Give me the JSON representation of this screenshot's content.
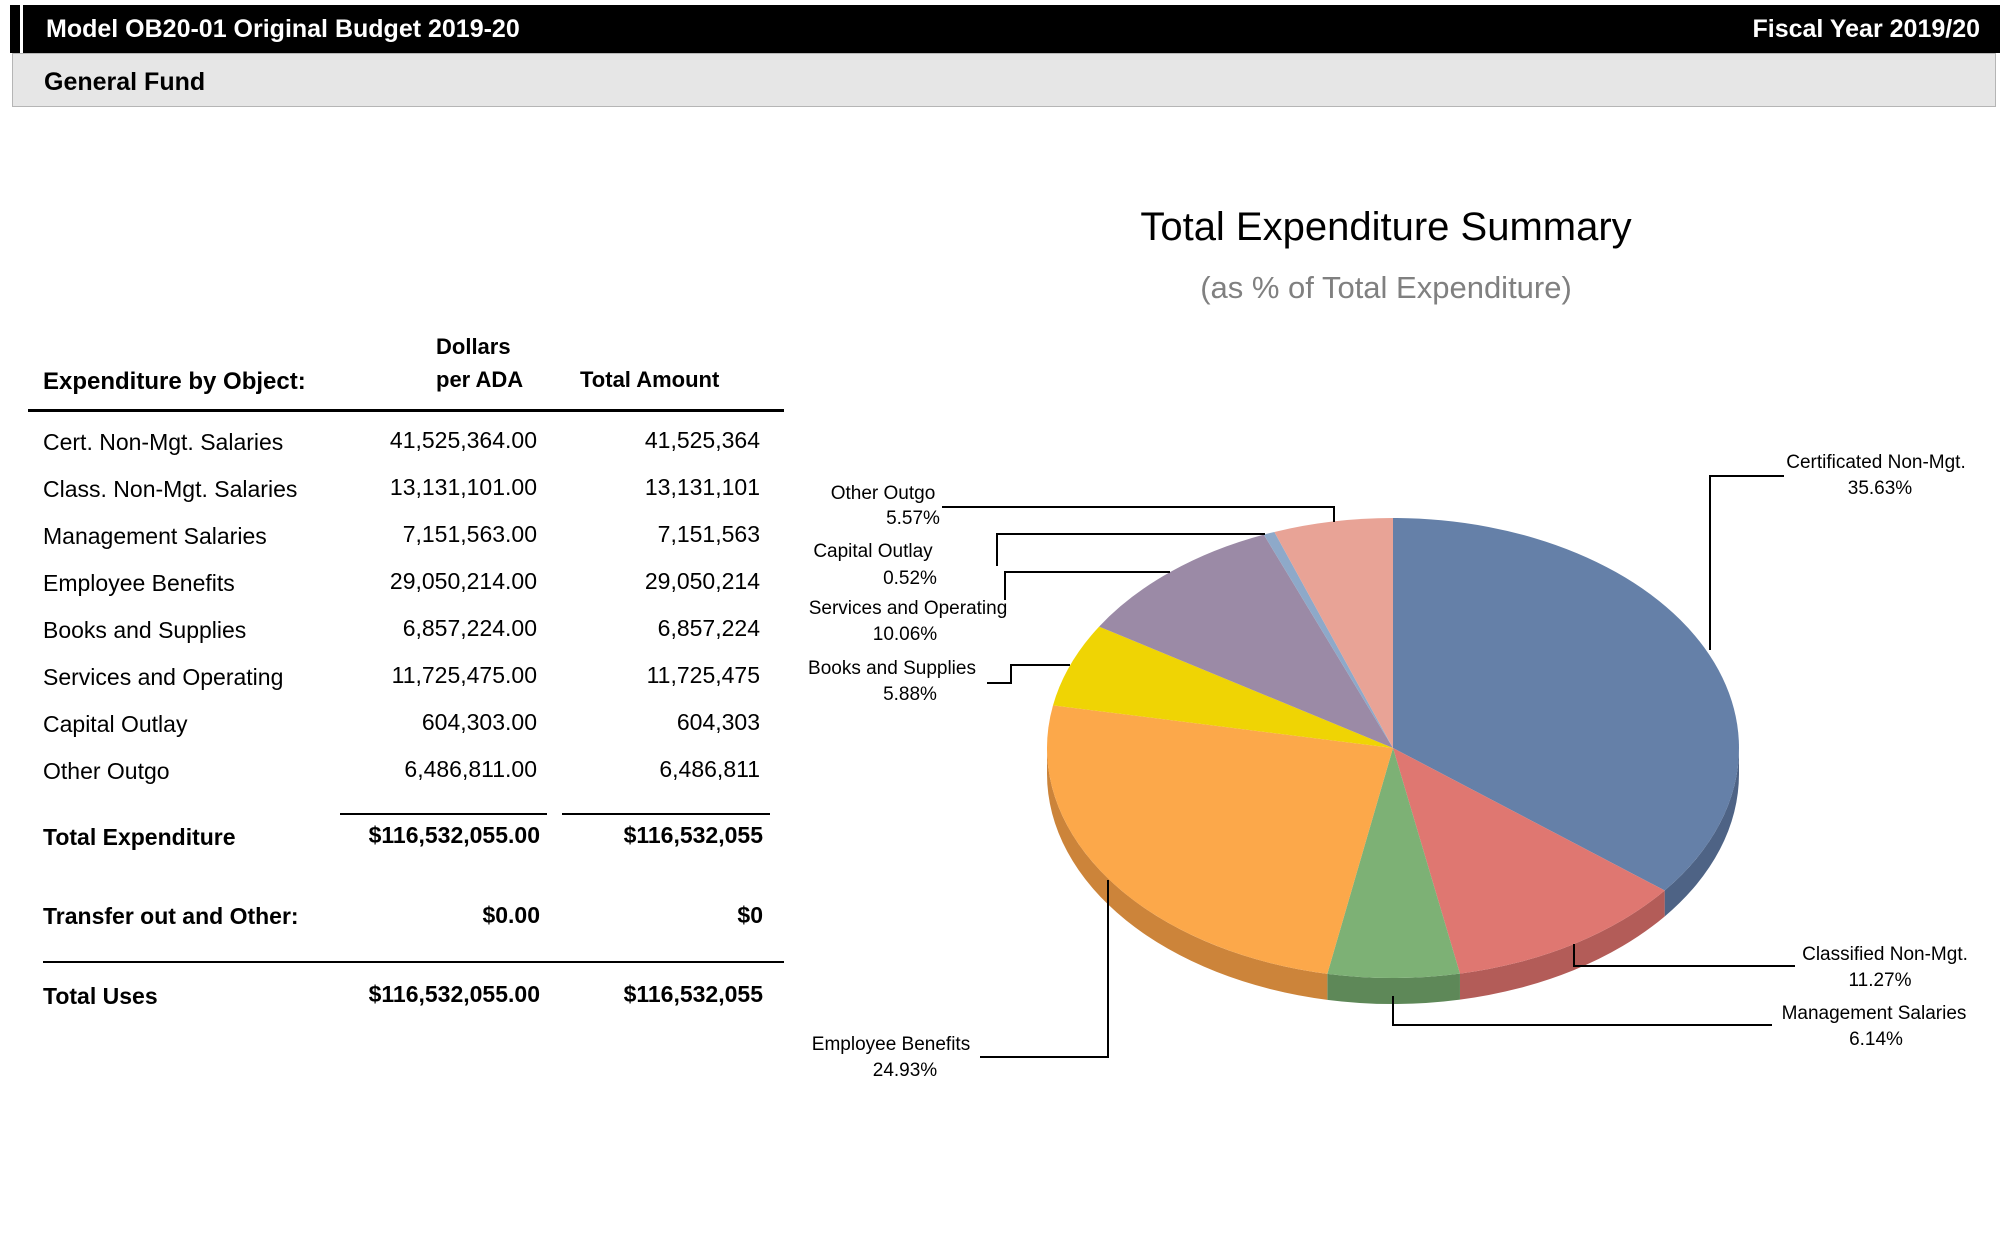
{
  "header": {
    "title": "Model OB20-01 Original Budget 2019-20",
    "fiscal_year": "Fiscal Year 2019/20",
    "fund": "General Fund"
  },
  "table": {
    "section_label": "Expenditure by Object:",
    "col_dollars_line1": "Dollars",
    "col_dollars_line2": "per ADA",
    "col_total": "Total Amount",
    "rows": [
      {
        "label": "Cert. Non-Mgt. Salaries",
        "per_ada": "41,525,364.00",
        "total": "41,525,364"
      },
      {
        "label": "Class. Non-Mgt. Salaries",
        "per_ada": "13,131,101.00",
        "total": "13,131,101"
      },
      {
        "label": "Management Salaries",
        "per_ada": "7,151,563.00",
        "total": "7,151,563"
      },
      {
        "label": "Employee Benefits",
        "per_ada": "29,050,214.00",
        "total": "29,050,214"
      },
      {
        "label": "Books and Supplies",
        "per_ada": "6,857,224.00",
        "total": "6,857,224"
      },
      {
        "label": "Services and Operating",
        "per_ada": "11,725,475.00",
        "total": "11,725,475"
      },
      {
        "label": "Capital Outlay",
        "per_ada": "604,303.00",
        "total": "604,303"
      },
      {
        "label": "Other Outgo",
        "per_ada": "6,486,811.00",
        "total": "6,486,811"
      }
    ],
    "total_expenditure": {
      "label": "Total Expenditure",
      "per_ada": "$116,532,055.00",
      "total": "$116,532,055"
    },
    "transfer_out": {
      "label": "Transfer out and Other:",
      "per_ada": "$0.00",
      "total": "$0"
    },
    "total_uses": {
      "label": "Total Uses",
      "per_ada": "$116,532,055.00",
      "total": "$116,532,055"
    }
  },
  "chart_data": {
    "type": "pie",
    "title": "Total Expenditure Summary",
    "subtitle": "(as % of Total Expenditure)",
    "slices": [
      {
        "name": "Certificated Non-Mgt.",
        "value": 35.63,
        "label": "35.63%",
        "color": "#6580a8",
        "side": "#4e6385"
      },
      {
        "name": "Classified Non-Mgt.",
        "value": 11.27,
        "label": "11.27%",
        "color": "#df7771",
        "side": "#b35c58"
      },
      {
        "name": "Management Salaries",
        "value": 6.14,
        "label": "6.14%",
        "color": "#7db175",
        "side": "#5e8858"
      },
      {
        "name": "Employee Benefits",
        "value": 24.93,
        "label": "24.93%",
        "color": "#fca84a",
        "side": "#cc843a"
      },
      {
        "name": "Books and Supplies",
        "value": 5.88,
        "label": "5.88%",
        "color": "#efd404",
        "side": "#bfa903"
      },
      {
        "name": "Services and Operating",
        "value": 10.06,
        "label": "10.06%",
        "color": "#9b8aa6",
        "side": "#7a6c83"
      },
      {
        "name": "Capital Outlay",
        "value": 0.52,
        "label": "0.52%",
        "color": "#8ea9c9",
        "side": "#6f86a0"
      },
      {
        "name": "Other Outgo",
        "value": 5.57,
        "label": "5.57%",
        "color": "#e8a396",
        "side": "#b98277"
      }
    ]
  }
}
